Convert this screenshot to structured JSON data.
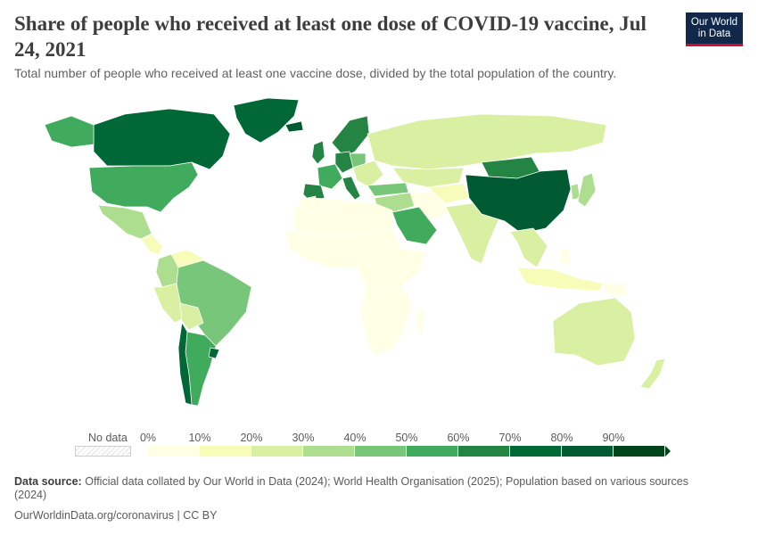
{
  "header": {
    "title": "Share of people who received at least one dose of COVID-19 vaccine, Jul 24, 2021",
    "subtitle": "Total number of people who received at least one vaccine dose, divided by the total population of the country.",
    "logo_line1": "Our World",
    "logo_line2": "in Data",
    "logo_color": "#12284b",
    "logo_accent": "#c8102e"
  },
  "legend": {
    "no_data_label": "No data",
    "ticks": [
      "0%",
      "10%",
      "20%",
      "30%",
      "40%",
      "50%",
      "60%",
      "70%",
      "80%",
      "90%"
    ],
    "colors": [
      "#ffffe5",
      "#f7fcb9",
      "#d9f0a3",
      "#addd8e",
      "#78c679",
      "#41ab5d",
      "#238443",
      "#006837",
      "#005a32",
      "#00441b"
    ]
  },
  "map_data": {
    "type": "choropleth",
    "unit": "% of population with at least one dose",
    "regions": [
      {
        "name": "Canada",
        "share": 70
      },
      {
        "name": "United States",
        "share": 56
      },
      {
        "name": "Mexico",
        "share": 35
      },
      {
        "name": "Brazil",
        "share": 46
      },
      {
        "name": "Argentina",
        "share": 52
      },
      {
        "name": "Chile",
        "share": 72
      },
      {
        "name": "Uruguay",
        "share": 72
      },
      {
        "name": "Peru",
        "share": 22
      },
      {
        "name": "Colombia",
        "share": 32
      },
      {
        "name": "Venezuela",
        "share": 12
      },
      {
        "name": "Greenland",
        "share": 70
      },
      {
        "name": "Iceland",
        "share": 80
      },
      {
        "name": "United Kingdom",
        "share": 69
      },
      {
        "name": "Spain",
        "share": 64
      },
      {
        "name": "France",
        "share": 58
      },
      {
        "name": "Germany",
        "share": 61
      },
      {
        "name": "Italy",
        "share": 61
      },
      {
        "name": "Poland",
        "share": 47
      },
      {
        "name": "Russia",
        "share": 25
      },
      {
        "name": "Kazakhstan",
        "share": 24
      },
      {
        "name": "Turkey",
        "share": 44
      },
      {
        "name": "Saudi Arabia",
        "share": 50
      },
      {
        "name": "Iran",
        "share": 8
      },
      {
        "name": "India",
        "share": 25
      },
      {
        "name": "China",
        "share": 80
      },
      {
        "name": "Mongolia",
        "share": 66
      },
      {
        "name": "Japan",
        "share": 36
      },
      {
        "name": "Indonesia",
        "share": 16
      },
      {
        "name": "Australia",
        "share": 20
      },
      {
        "name": "New Zealand",
        "share": 20
      },
      {
        "name": "Africa",
        "share": 3
      }
    ]
  },
  "source": {
    "label": "Data source:",
    "text": "Official data collated by Our World in Data (2024); World Health Organisation (2025); Population based on various sources (2024)"
  },
  "footer": {
    "url": "OurWorldinData.org/coronavirus",
    "separator": " | ",
    "license": "CC BY"
  }
}
